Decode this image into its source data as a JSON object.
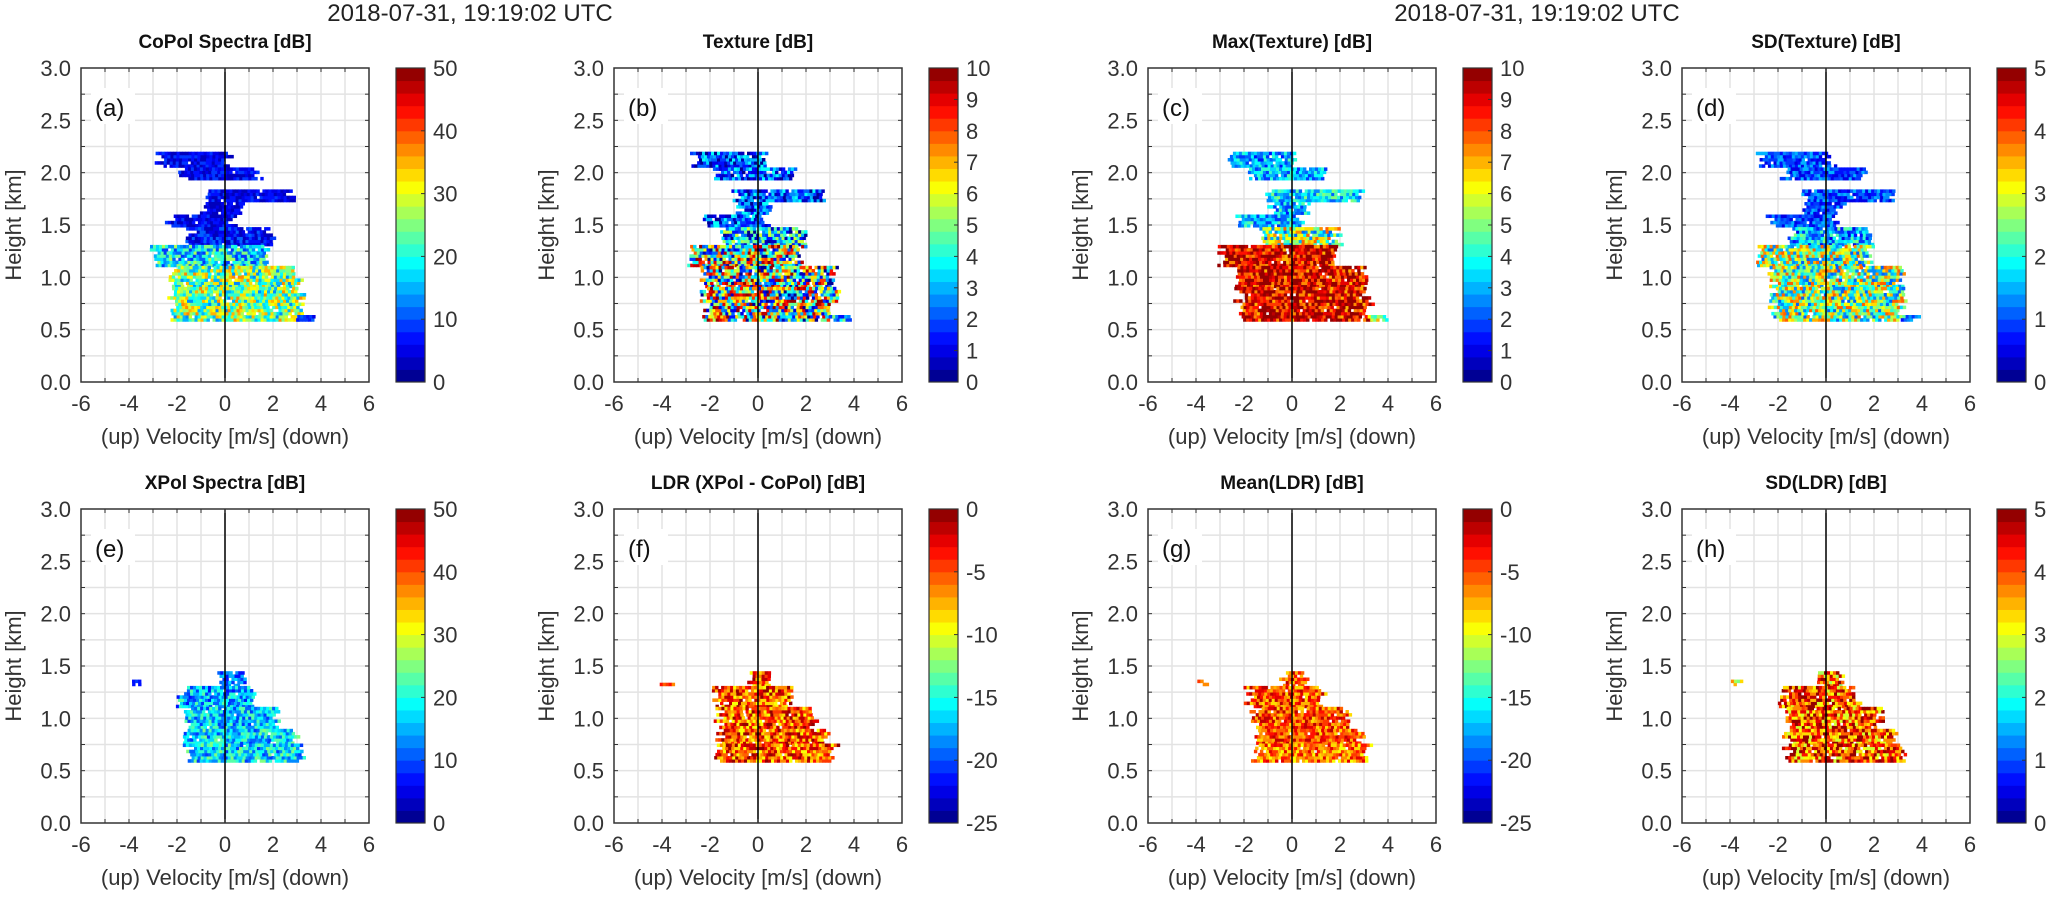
{
  "timestamps": [
    "2018-07-31, 19:19:02 UTC",
    "2018-07-31, 19:19:02 UTC"
  ],
  "axes": {
    "xlabel": "(up) Velocity [m/s] (down)",
    "ylabel": "Height [km]",
    "xticks": [
      "-6",
      "-4",
      "-2",
      "0",
      "2",
      "4",
      "6"
    ],
    "yticks": [
      "0.0",
      "0.5",
      "1.0",
      "1.5",
      "2.0",
      "2.5",
      "3.0"
    ]
  },
  "chart_data": {
    "type": "heatmap",
    "xlim": [
      -6,
      6
    ],
    "ylim": [
      0,
      3
    ],
    "grid": true,
    "colormap": "jet",
    "colormap_levels": 25,
    "shapes_note_units": "bands: [height_min_km, height_max_km, velocity_min_ms, velocity_max_ms]",
    "shapes": {
      "upper": [
        [
          2.05,
          2.18,
          -2.7,
          0.1
        ],
        [
          1.93,
          2.05,
          -1.7,
          1.4
        ],
        [
          1.72,
          1.84,
          -0.9,
          2.8
        ],
        [
          1.6,
          1.72,
          -0.8,
          0.6
        ],
        [
          1.48,
          1.6,
          -2.3,
          0.3
        ],
        [
          1.3,
          1.48,
          -1.4,
          1.8
        ],
        [
          1.1,
          1.3,
          -2.9,
          1.7
        ],
        [
          0.9,
          1.1,
          -2.2,
          3.0
        ],
        [
          0.58,
          0.9,
          -2.2,
          3.1
        ],
        [
          0.58,
          0.64,
          3.1,
          3.7
        ]
      ],
      "lower": [
        [
          1.3,
          1.45,
          -0.3,
          0.6
        ],
        [
          1.1,
          1.3,
          -1.8,
          1.2
        ],
        [
          0.9,
          1.1,
          -1.6,
          2.2
        ],
        [
          0.75,
          0.9,
          -1.6,
          2.8
        ],
        [
          0.58,
          0.75,
          -1.6,
          3.2
        ],
        [
          1.31,
          1.36,
          -3.9,
          -3.7
        ]
      ]
    },
    "panels": [
      {
        "label": "(a)",
        "title": "CoPol Spectra [dB]",
        "clim": [
          0,
          50
        ],
        "cticks": [
          "0",
          "10",
          "20",
          "30",
          "40",
          "50"
        ],
        "shape": "upper",
        "band_values": [
          [
            6,
            4
          ],
          [
            6,
            4
          ],
          [
            6,
            4
          ],
          [
            5,
            3
          ],
          [
            6,
            4
          ],
          [
            7,
            5
          ],
          [
            18,
            10
          ],
          [
            25,
            12
          ],
          [
            25,
            12
          ],
          [
            8,
            3
          ]
        ]
      },
      {
        "label": "(b)",
        "title": "Texture [dB]",
        "clim": [
          0,
          10
        ],
        "cticks": [
          "0",
          "1",
          "2",
          "3",
          "4",
          "5",
          "6",
          "7",
          "8",
          "9",
          "10"
        ],
        "shape": "upper",
        "band_values": [
          [
            2,
            2
          ],
          [
            2,
            2
          ],
          [
            2,
            2
          ],
          [
            2,
            2
          ],
          [
            2,
            2
          ],
          [
            3,
            3
          ],
          [
            5,
            5
          ],
          [
            5,
            5
          ],
          [
            5,
            5
          ],
          [
            3,
            2
          ]
        ]
      },
      {
        "label": "(c)",
        "title": "Max(Texture) [dB]",
        "clim": [
          0,
          10
        ],
        "cticks": [
          "0",
          "1",
          "2",
          "3",
          "4",
          "5",
          "6",
          "7",
          "8",
          "9",
          "10"
        ],
        "shape": "upper",
        "band_values": [
          [
            3,
            1.5
          ],
          [
            3,
            1.5
          ],
          [
            3.5,
            1.5
          ],
          [
            3,
            1.5
          ],
          [
            3,
            1.5
          ],
          [
            5,
            3
          ],
          [
            9,
            2
          ],
          [
            9,
            2
          ],
          [
            9,
            2
          ],
          [
            5,
            2
          ]
        ]
      },
      {
        "label": "(d)",
        "title": "SD(Texture) [dB]",
        "clim": [
          0,
          5
        ],
        "cticks": [
          "0",
          "1",
          "2",
          "3",
          "4",
          "5"
        ],
        "shape": "upper",
        "band_values": [
          [
            1,
            0.6
          ],
          [
            1,
            0.6
          ],
          [
            1,
            0.6
          ],
          [
            1,
            0.6
          ],
          [
            1,
            0.6
          ],
          [
            1.5,
            1
          ],
          [
            2.5,
            1.5
          ],
          [
            2.5,
            1.5
          ],
          [
            2.5,
            1.5
          ],
          [
            1,
            0.5
          ]
        ]
      },
      {
        "label": "(e)",
        "title": "XPol Spectra [dB]",
        "clim": [
          0,
          50
        ],
        "cticks": [
          "0",
          "10",
          "20",
          "30",
          "40",
          "50"
        ],
        "shape": "lower",
        "band_values": [
          [
            12,
            6
          ],
          [
            15,
            8
          ],
          [
            16,
            8
          ],
          [
            17,
            8
          ],
          [
            17,
            8
          ],
          [
            8,
            2
          ]
        ]
      },
      {
        "label": "(f)",
        "title": "LDR (XPol - CoPol) [dB]",
        "clim": [
          -25,
          0
        ],
        "cticks": [
          "-25",
          "-20",
          "-15",
          "-10",
          "-5",
          "0"
        ],
        "shape": "lower",
        "band_values": [
          [
            -5,
            5
          ],
          [
            -5,
            5
          ],
          [
            -5,
            5
          ],
          [
            -5,
            5
          ],
          [
            -5,
            5
          ],
          [
            -5,
            2
          ]
        ]
      },
      {
        "label": "(g)",
        "title": "Mean(LDR) [dB]",
        "clim": [
          -25,
          0
        ],
        "cticks": [
          "-25",
          "-20",
          "-15",
          "-10",
          "-5",
          "0"
        ],
        "shape": "lower",
        "band_values": [
          [
            -5,
            3.5
          ],
          [
            -5,
            4
          ],
          [
            -5,
            4
          ],
          [
            -5,
            3.5
          ],
          [
            -6,
            4
          ],
          [
            -5,
            2
          ]
        ]
      },
      {
        "label": "(h)",
        "title": "SD(LDR) [dB]",
        "clim": [
          0,
          5
        ],
        "cticks": [
          "0",
          "1",
          "2",
          "3",
          "4",
          "5"
        ],
        "shape": "lower",
        "band_values": [
          [
            3.8,
            1.5
          ],
          [
            4,
            1.2
          ],
          [
            4,
            1.2
          ],
          [
            4,
            1.2
          ],
          [
            4,
            1.2
          ],
          [
            3,
            1
          ]
        ]
      }
    ]
  }
}
